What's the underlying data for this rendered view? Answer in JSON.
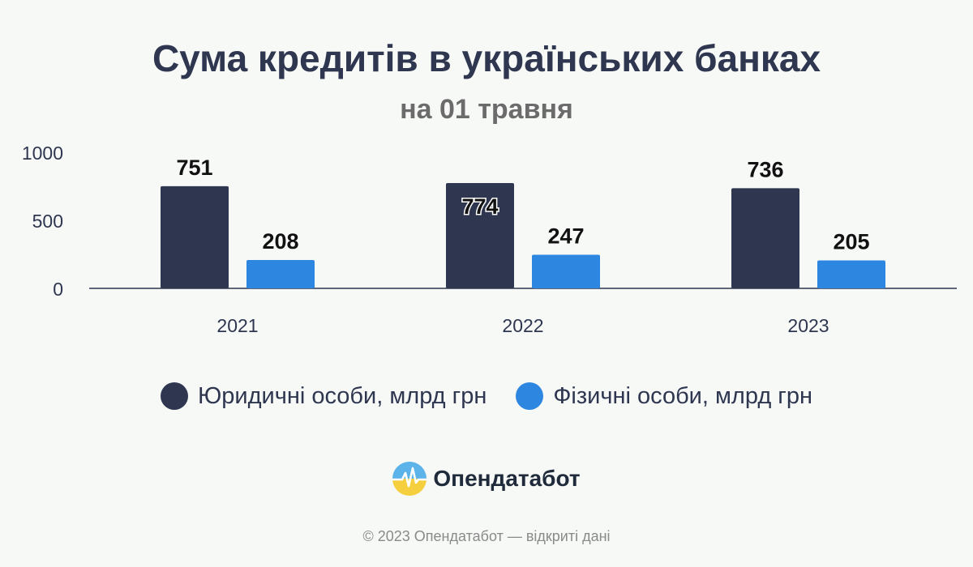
{
  "title": "Сума кредитів в українських банках",
  "subtitle": "на 01 травня",
  "chart_data": {
    "type": "bar",
    "categories": [
      "2021",
      "2022",
      "2023"
    ],
    "series": [
      {
        "name": "Юридичні особи, млрд грн",
        "values": [
          751,
          774,
          736
        ],
        "color": "#2e3650"
      },
      {
        "name": "Фізичні особи, млрд грн",
        "values": [
          208,
          247,
          205
        ],
        "color": "#2d87e0"
      }
    ],
    "ylim": [
      0,
      1000
    ],
    "yticks": [
      "0",
      "500",
      "1000"
    ],
    "grid": false,
    "legend": "bottom-center"
  },
  "brand": {
    "name": "Опендатабот",
    "icon": "opendatabot-logo-icon"
  },
  "footer": "© 2023 Опендатабот — відкриті дані"
}
